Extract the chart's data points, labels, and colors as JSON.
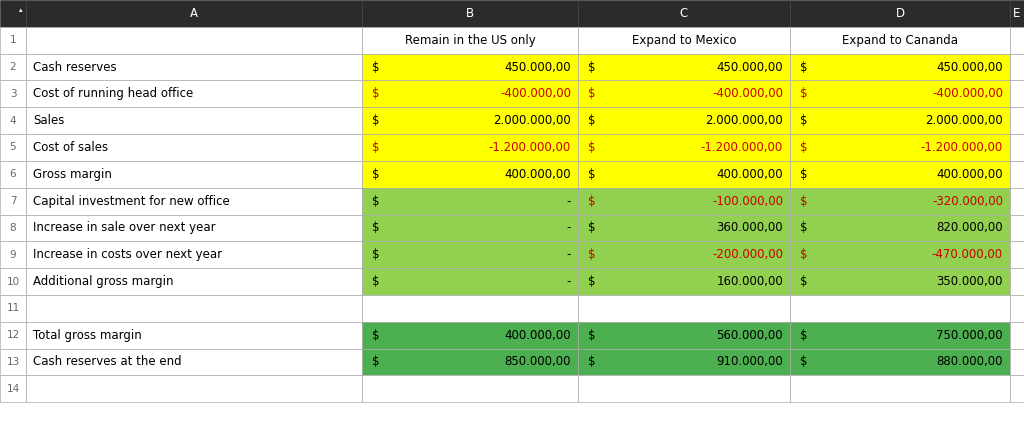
{
  "col_letters": [
    "A",
    "B",
    "C",
    "D",
    "E"
  ],
  "header_texts": [
    "Remain in the US only",
    "Expand to Mexico",
    "Expand to Cananda"
  ],
  "rows": [
    {
      "row": "2",
      "label": "Cash reserves",
      "B_sym": "$",
      "B_val": "450.000,00",
      "C_sym": "$",
      "C_val": "450.000,00",
      "D_sym": "$",
      "D_val": "450.000,00",
      "B_neg": false,
      "C_neg": false,
      "D_neg": false
    },
    {
      "row": "3",
      "label": "Cost of running head office",
      "B_sym": "$",
      "B_val": "-400.000,00",
      "C_sym": "$",
      "C_val": "-400.000,00",
      "D_sym": "$",
      "D_val": "-400.000,00",
      "B_neg": true,
      "C_neg": true,
      "D_neg": true
    },
    {
      "row": "4",
      "label": "Sales",
      "B_sym": "$",
      "B_val": "2.000.000,00",
      "C_sym": "$",
      "C_val": "2.000.000,00",
      "D_sym": "$",
      "D_val": "2.000.000,00",
      "B_neg": false,
      "C_neg": false,
      "D_neg": false
    },
    {
      "row": "5",
      "label": "Cost of sales",
      "B_sym": "$",
      "B_val": "-1.200.000,00",
      "C_sym": "$",
      "C_val": "-1.200.000,00",
      "D_sym": "$",
      "D_val": "-1.200.000,00",
      "B_neg": true,
      "C_neg": true,
      "D_neg": true
    },
    {
      "row": "6",
      "label": "Gross margin",
      "B_sym": "$",
      "B_val": "400.000,00",
      "C_sym": "$",
      "C_val": "400.000,00",
      "D_sym": "$",
      "D_val": "400.000,00",
      "B_neg": false,
      "C_neg": false,
      "D_neg": false
    },
    {
      "row": "7",
      "label": "Capital investment for new office",
      "B_sym": "$",
      "B_val": "-",
      "C_sym": "$",
      "C_val": "-100.000,00",
      "D_sym": "$",
      "D_val": "-320.000,00",
      "B_neg": false,
      "C_neg": true,
      "D_neg": true
    },
    {
      "row": "8",
      "label": "Increase in sale over next year",
      "B_sym": "$",
      "B_val": "-",
      "C_sym": "$",
      "C_val": "360.000,00",
      "D_sym": "$",
      "D_val": "820.000,00",
      "B_neg": false,
      "C_neg": false,
      "D_neg": false
    },
    {
      "row": "9",
      "label": "Increase in costs over next year",
      "B_sym": "$",
      "B_val": "-",
      "C_sym": "$",
      "C_val": "-200.000,00",
      "D_sym": "$",
      "D_val": "-470.000,00",
      "B_neg": false,
      "C_neg": true,
      "D_neg": true
    },
    {
      "row": "10",
      "label": "Additional gross margin",
      "B_sym": "$",
      "B_val": "-",
      "C_sym": "$",
      "C_val": "160.000,00",
      "D_sym": "$",
      "D_val": "350.000,00",
      "B_neg": false,
      "C_neg": false,
      "D_neg": false
    },
    {
      "row": "11",
      "label": "",
      "B_sym": "",
      "B_val": "",
      "C_sym": "",
      "C_val": "",
      "D_sym": "",
      "D_val": "",
      "B_neg": false,
      "C_neg": false,
      "D_neg": false
    },
    {
      "row": "12",
      "label": "Total gross margin",
      "B_sym": "$",
      "B_val": "400.000,00",
      "C_sym": "$",
      "C_val": "560.000,00",
      "D_sym": "$",
      "D_val": "750.000,00",
      "B_neg": false,
      "C_neg": false,
      "D_neg": false
    },
    {
      "row": "13",
      "label": "Cash reserves at the end",
      "B_sym": "$",
      "B_val": "850.000,00",
      "C_sym": "$",
      "C_val": "910.000,00",
      "D_sym": "$",
      "D_val": "880.000,00",
      "B_neg": false,
      "C_neg": false,
      "D_neg": false
    },
    {
      "row": "14",
      "label": "",
      "B_sym": "",
      "B_val": "",
      "C_sym": "",
      "C_val": "",
      "D_sym": "",
      "D_val": "",
      "B_neg": false,
      "C_neg": false,
      "D_neg": false
    }
  ],
  "bg_yellow": "#FFFF00",
  "bg_green_light": "#92D050",
  "bg_green_dark": "#4CAF50",
  "text_black": "#000000",
  "text_red": "#CC0000",
  "font_size": 8.5,
  "header_bg": "#2B2B2B"
}
